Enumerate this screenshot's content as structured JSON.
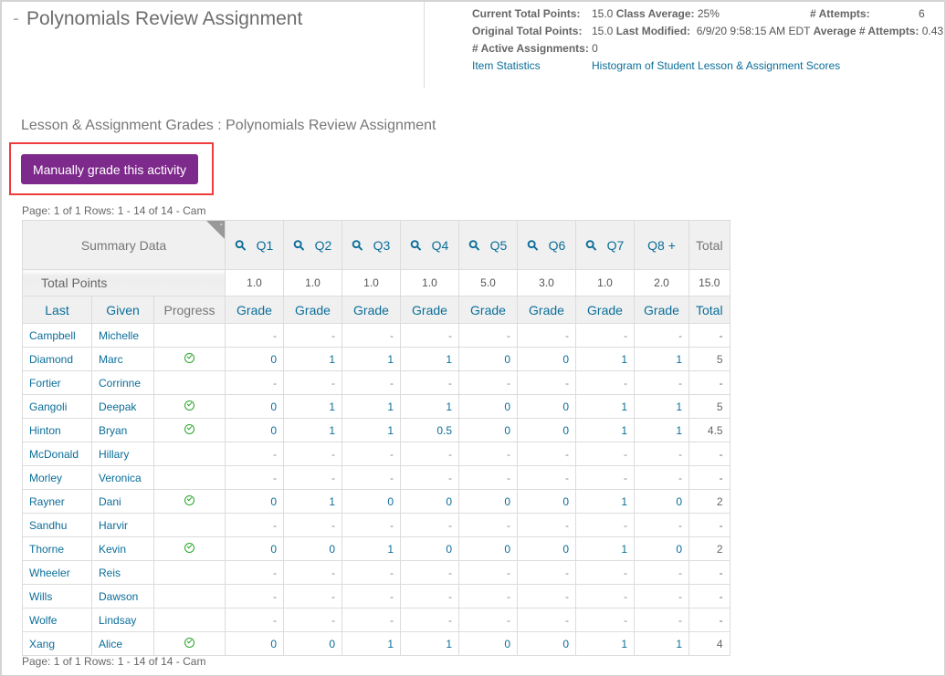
{
  "header": {
    "title": "Polynomials Review Assignment",
    "collapse": "-"
  },
  "stats": {
    "current_total_points_label": "Current Total Points:",
    "current_total_points": "15.0",
    "class_average_label": "Class Average:",
    "class_average": "25%",
    "attempts_label": "# Attempts:",
    "attempts": "6",
    "original_total_points_label": "Original Total Points:",
    "original_total_points": "15.0",
    "last_modified_label": "Last Modified:",
    "last_modified": "6/9/20 9:58:15 AM EDT",
    "average_attempts_label": "Average # Attempts:",
    "average_attempts": "0.43",
    "active_assignments_label": "# Active Assignments:",
    "active_assignments": "0",
    "item_statistics_link": "Item Statistics",
    "histogram_link": "Histogram of Student Lesson & Assignment Scores"
  },
  "subtitle": "Lesson & Assignment Grades : Polynomials Review Assignment",
  "manual_grade_button": "Manually grade this activity",
  "pager": "Page: 1 of 1 Rows: 1 - 14 of 14   -   Cam",
  "table": {
    "summary_label": "Summary Data",
    "collapse": "-",
    "questions": [
      "Q1",
      "Q2",
      "Q3",
      "Q4",
      "Q5",
      "Q6",
      "Q7",
      "Q8 +"
    ],
    "total_header": "Total",
    "total_points_label": "Total Points",
    "total_points": [
      "1.0",
      "1.0",
      "1.0",
      "1.0",
      "5.0",
      "3.0",
      "1.0",
      "2.0",
      "15.0"
    ],
    "sub_headers": {
      "last": "Last",
      "given": "Given",
      "progress": "Progress",
      "grade": "Grade",
      "total": "Total"
    },
    "rows": [
      {
        "last": "Campbell",
        "given": "Michelle",
        "done": false,
        "grades": [
          "-",
          "-",
          "-",
          "-",
          "-",
          "-",
          "-",
          "-"
        ],
        "total": "-"
      },
      {
        "last": "Diamond",
        "given": "Marc",
        "done": true,
        "grades": [
          "0",
          "1",
          "1",
          "1",
          "0",
          "0",
          "1",
          "1"
        ],
        "total": "5"
      },
      {
        "last": "Fortier",
        "given": "Corrinne",
        "done": false,
        "grades": [
          "-",
          "-",
          "-",
          "-",
          "-",
          "-",
          "-",
          "-"
        ],
        "total": "-"
      },
      {
        "last": "Gangoli",
        "given": "Deepak",
        "done": true,
        "grades": [
          "0",
          "1",
          "1",
          "1",
          "0",
          "0",
          "1",
          "1"
        ],
        "total": "5"
      },
      {
        "last": "Hinton",
        "given": "Bryan",
        "done": true,
        "grades": [
          "0",
          "1",
          "1",
          "0.5",
          "0",
          "0",
          "1",
          "1"
        ],
        "total": "4.5"
      },
      {
        "last": "McDonald",
        "given": "Hillary",
        "done": false,
        "grades": [
          "-",
          "-",
          "-",
          "-",
          "-",
          "-",
          "-",
          "-"
        ],
        "total": "-"
      },
      {
        "last": "Morley",
        "given": "Veronica",
        "done": false,
        "grades": [
          "-",
          "-",
          "-",
          "-",
          "-",
          "-",
          "-",
          "-"
        ],
        "total": "-"
      },
      {
        "last": "Rayner",
        "given": "Dani",
        "done": true,
        "grades": [
          "0",
          "1",
          "0",
          "0",
          "0",
          "0",
          "1",
          "0"
        ],
        "total": "2"
      },
      {
        "last": "Sandhu",
        "given": "Harvir",
        "done": false,
        "grades": [
          "-",
          "-",
          "-",
          "-",
          "-",
          "-",
          "-",
          "-"
        ],
        "total": "-"
      },
      {
        "last": "Thorne",
        "given": "Kevin",
        "done": true,
        "grades": [
          "0",
          "0",
          "1",
          "0",
          "0",
          "0",
          "1",
          "0"
        ],
        "total": "2"
      },
      {
        "last": "Wheeler",
        "given": "Reis",
        "done": false,
        "grades": [
          "-",
          "-",
          "-",
          "-",
          "-",
          "-",
          "-",
          "-"
        ],
        "total": "-"
      },
      {
        "last": "Wills",
        "given": "Dawson",
        "done": false,
        "grades": [
          "-",
          "-",
          "-",
          "-",
          "-",
          "-",
          "-",
          "-"
        ],
        "total": "-"
      },
      {
        "last": "Wolfe",
        "given": "Lindsay",
        "done": false,
        "grades": [
          "-",
          "-",
          "-",
          "-",
          "-",
          "-",
          "-",
          "-"
        ],
        "total": "-"
      },
      {
        "last": "Xang",
        "given": "Alice",
        "done": true,
        "grades": [
          "0",
          "0",
          "1",
          "1",
          "0",
          "0",
          "1",
          "1"
        ],
        "total": "4"
      }
    ]
  },
  "colors": {
    "accent": "#7e2a8c",
    "link": "#0b6e99",
    "highlight": "#ee3b3b",
    "complete": "#2aa52a"
  }
}
